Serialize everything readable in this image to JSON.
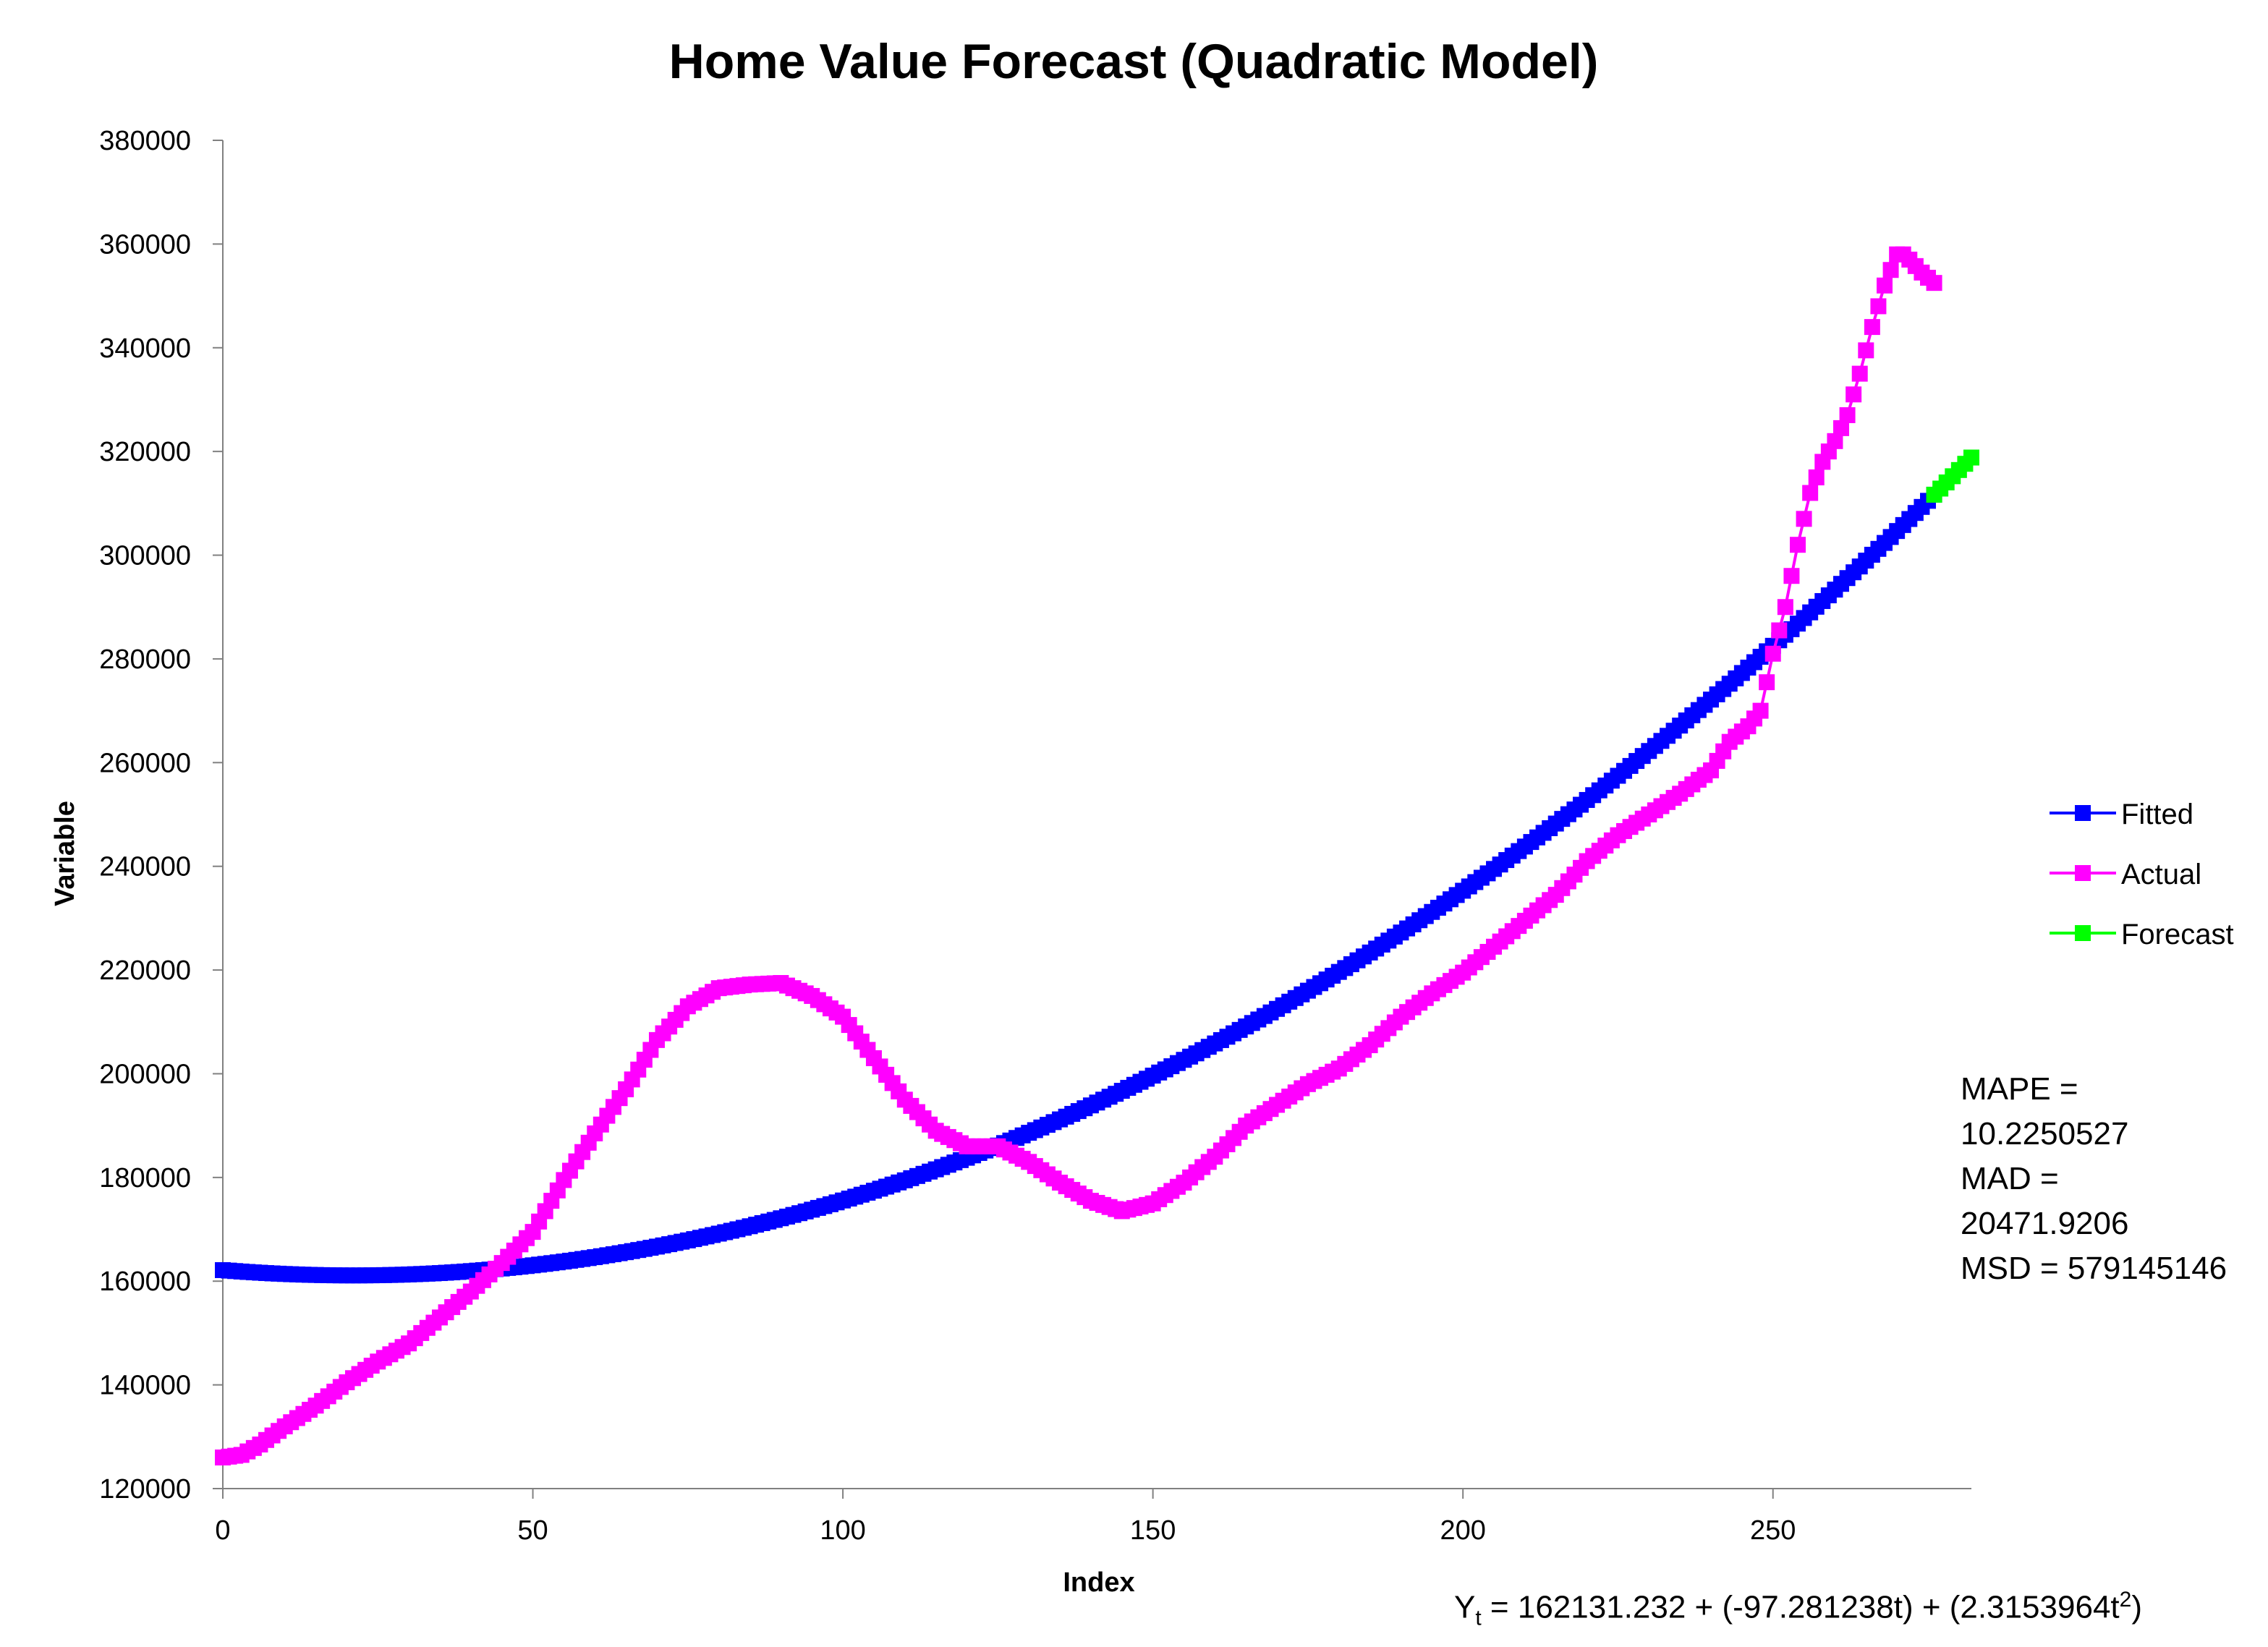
{
  "chart_data": {
    "type": "line",
    "title": "Home Value Forecast (Quadratic Model)",
    "xlabel": "Index",
    "ylabel": "Variable",
    "xlim": [
      0,
      282
    ],
    "ylim": [
      120000,
      380000
    ],
    "xticks": [
      0,
      50,
      100,
      150,
      200,
      250
    ],
    "yticks": [
      120000,
      140000,
      160000,
      180000,
      200000,
      220000,
      240000,
      260000,
      280000,
      300000,
      320000,
      340000,
      360000,
      380000
    ],
    "grid": false,
    "legend_position": "right",
    "series": [
      {
        "name": "Fitted",
        "color": "#0000FF",
        "model": "quadratic",
        "coefficients": {
          "intercept": 162131.232,
          "linear": -97.281238,
          "quadratic": 2.3153964
        },
        "x_range": [
          0,
          276
        ]
      },
      {
        "name": "Actual",
        "color": "#FF00FF",
        "x": [
          0,
          3,
          6,
          10,
          15,
          20,
          25,
          30,
          35,
          40,
          45,
          50,
          55,
          60,
          65,
          70,
          75,
          80,
          85,
          90,
          95,
          100,
          105,
          110,
          115,
          120,
          125,
          130,
          135,
          140,
          145,
          150,
          155,
          160,
          165,
          170,
          175,
          180,
          185,
          190,
          195,
          200,
          205,
          210,
          215,
          220,
          225,
          230,
          235,
          240,
          243,
          246,
          248,
          250,
          252,
          254,
          256,
          258,
          260,
          262,
          264,
          266,
          268,
          269,
          270,
          271,
          272,
          274,
          276
        ],
        "y": [
          126000,
          126500,
          128500,
          132000,
          136000,
          140500,
          144500,
          148000,
          153000,
          158000,
          163500,
          169500,
          179500,
          188500,
          197000,
          206500,
          213000,
          216500,
          217200,
          217500,
          215000,
          211000,
          203000,
          195000,
          189000,
          186000,
          186000,
          183000,
          179000,
          175500,
          173500,
          175000,
          179000,
          184000,
          190000,
          194000,
          198000,
          201000,
          205500,
          211000,
          215500,
          219500,
          224500,
          229500,
          234500,
          241000,
          246000,
          250000,
          254000,
          258500,
          264000,
          267000,
          270000,
          281000,
          290000,
          302000,
          312000,
          318000,
          322000,
          327000,
          335000,
          344000,
          352000,
          355000,
          358000,
          358000,
          357000,
          354500,
          352500
        ]
      },
      {
        "name": "Forecast",
        "color": "#00FF00",
        "model": "quadratic",
        "coefficients": {
          "intercept": 162131.232,
          "linear": -97.281238,
          "quadratic": 2.3153964
        },
        "x_range": [
          276,
          282
        ]
      }
    ],
    "stats_lines": [
      "MAPE =",
      "10.2250527",
      "MAD =",
      "20471.9206",
      "MSD = 579145146"
    ],
    "equation": {
      "lhs": "Y",
      "lhs_sub": "t",
      "rhs": " = 162131.232 + (-97.281238t) + (2.3153964t",
      "rhs_sup": "2",
      "rhs_tail": ")"
    }
  }
}
